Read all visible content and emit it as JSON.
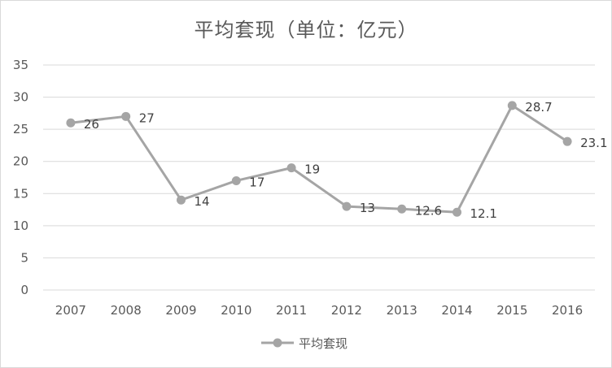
{
  "chart_data": {
    "type": "line",
    "title": "平均套现（单位：亿元）",
    "categories": [
      "2007",
      "2008",
      "2009",
      "2010",
      "2011",
      "2012",
      "2013",
      "2014",
      "2015",
      "2016"
    ],
    "series": [
      {
        "name": "平均套现",
        "values": [
          26,
          27,
          14,
          17,
          19,
          13,
          12.6,
          12.1,
          28.7,
          23.1
        ],
        "labels": [
          "26",
          "27",
          "14",
          "17",
          "19",
          "13",
          "12.6",
          "12.1",
          "28.7",
          "23.1"
        ],
        "color": "#a5a5a5"
      }
    ],
    "y_ticks": [
      "0",
      "5",
      "10",
      "15",
      "20",
      "25",
      "30",
      "35"
    ],
    "ylim": [
      0,
      35
    ],
    "grid": true,
    "legend_position": "bottom"
  }
}
